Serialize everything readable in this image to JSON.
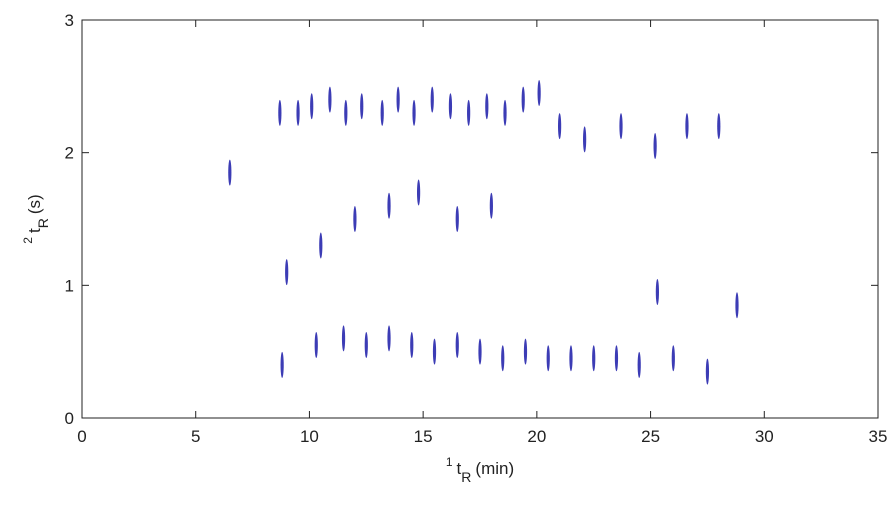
{
  "chart_data": {
    "type": "scatter",
    "xlabel": {
      "sup": "1",
      "main": "t",
      "sub": "R",
      "unit": "(min)"
    },
    "ylabel": {
      "sup": "2",
      "main": "t",
      "sub": "R",
      "unit": "(s)"
    },
    "xlim": [
      0,
      35
    ],
    "xticks": [
      0,
      5,
      10,
      15,
      20,
      25,
      30,
      35
    ],
    "ylim": [
      0,
      3
    ],
    "yticks": [
      0,
      1,
      2,
      3
    ],
    "color": "#1a1aa8",
    "x": [
      6.5,
      8.7,
      9.5,
      10.1,
      10.9,
      11.6,
      12.3,
      13.2,
      13.9,
      14.6,
      15.4,
      16.2,
      17.0,
      17.8,
      18.6,
      19.4,
      20.1,
      21.0,
      22.1,
      23.7,
      25.2,
      26.6,
      28.0,
      9.0,
      10.5,
      12.0,
      13.5,
      14.8,
      16.5,
      18.0,
      28.8,
      25.3,
      8.8,
      10.3,
      11.5,
      12.5,
      13.5,
      14.5,
      15.5,
      16.5,
      17.5,
      18.5,
      19.5,
      20.5,
      21.5,
      22.5,
      23.5,
      24.5,
      26.0,
      27.5
    ],
    "y": [
      1.85,
      2.3,
      2.3,
      2.35,
      2.4,
      2.3,
      2.35,
      2.3,
      2.4,
      2.3,
      2.4,
      2.35,
      2.3,
      2.35,
      2.3,
      2.4,
      2.45,
      2.2,
      2.1,
      2.2,
      2.05,
      2.2,
      2.2,
      1.1,
      1.3,
      1.5,
      1.6,
      1.7,
      1.5,
      1.6,
      0.85,
      0.95,
      0.4,
      0.55,
      0.6,
      0.55,
      0.6,
      0.55,
      0.5,
      0.55,
      0.5,
      0.45,
      0.5,
      0.45,
      0.45,
      0.45,
      0.45,
      0.4,
      0.45,
      0.35
    ]
  }
}
